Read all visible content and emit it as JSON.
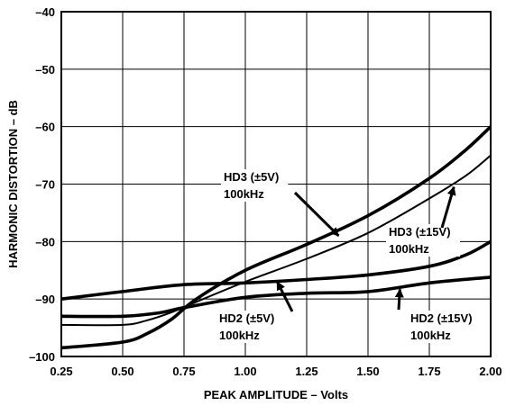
{
  "chart_data": {
    "type": "line",
    "title": "",
    "xlabel": "PEAK AMPLITUDE – Volts",
    "ylabel": "HARMONIC DISTORTION – dB",
    "xlim": [
      0.25,
      2.0
    ],
    "ylim": [
      -100,
      -40
    ],
    "x_ticks": [
      "0.25",
      "0.50",
      "0.75",
      "1.00",
      "1.25",
      "1.50",
      "1.75",
      "2.00"
    ],
    "y_ticks": [
      "–40",
      "–50",
      "–60",
      "–70",
      "–80",
      "–90",
      "–100"
    ],
    "grid": true,
    "series": [
      {
        "name": "HD3 (±5V) 100kHz",
        "stroke": "thick",
        "points": [
          [
            0.25,
            -98.5
          ],
          [
            0.5,
            -97.5
          ],
          [
            0.6,
            -96
          ],
          [
            0.7,
            -93.5
          ],
          [
            0.8,
            -90
          ],
          [
            1.0,
            -85
          ],
          [
            1.25,
            -80.5
          ],
          [
            1.5,
            -75.5
          ],
          [
            1.75,
            -69
          ],
          [
            1.9,
            -64
          ],
          [
            2.0,
            -60
          ]
        ]
      },
      {
        "name": "HD3 (±15V) 100kHz",
        "stroke": "thin",
        "points": [
          [
            0.25,
            -94.5
          ],
          [
            0.5,
            -94.5
          ],
          [
            0.6,
            -93.7
          ],
          [
            0.7,
            -92.3
          ],
          [
            0.8,
            -90.5
          ],
          [
            1.0,
            -87
          ],
          [
            1.25,
            -83
          ],
          [
            1.5,
            -78.5
          ],
          [
            1.75,
            -72.5
          ],
          [
            1.9,
            -68.5
          ],
          [
            2.0,
            -65
          ]
        ]
      },
      {
        "name": "HD2 (±5V) 100kHz",
        "stroke": "thick",
        "points": [
          [
            0.25,
            -90
          ],
          [
            0.5,
            -88.7
          ],
          [
            0.75,
            -87.5
          ],
          [
            1.0,
            -87.2
          ],
          [
            1.25,
            -86.6
          ],
          [
            1.5,
            -85.8
          ],
          [
            1.75,
            -84.3
          ],
          [
            1.9,
            -82.3
          ],
          [
            2.0,
            -80
          ]
        ]
      },
      {
        "name": "HD2 (±15V) 100kHz",
        "stroke": "thick",
        "points": [
          [
            0.25,
            -93
          ],
          [
            0.5,
            -93
          ],
          [
            0.65,
            -92.4
          ],
          [
            0.75,
            -91.5
          ],
          [
            1.0,
            -89.7
          ],
          [
            1.25,
            -89
          ],
          [
            1.5,
            -88.7
          ],
          [
            1.75,
            -87.2
          ],
          [
            2.0,
            -86.2
          ]
        ]
      }
    ],
    "annotations": [
      {
        "line1": "HD3 (±5V)",
        "line2": "100kHz",
        "target": [
          1.38,
          -79.0
        ]
      },
      {
        "line1": "HD3 (±15V)",
        "line2": "100kHz",
        "target": [
          1.85,
          -70.5
        ]
      },
      {
        "line1": "HD2 (±5V)",
        "line2": "100kHz",
        "target": [
          1.13,
          -87.0
        ]
      },
      {
        "line1": "HD2 (±15V)",
        "line2": "100kHz",
        "target": [
          1.63,
          -88.3
        ]
      }
    ]
  }
}
